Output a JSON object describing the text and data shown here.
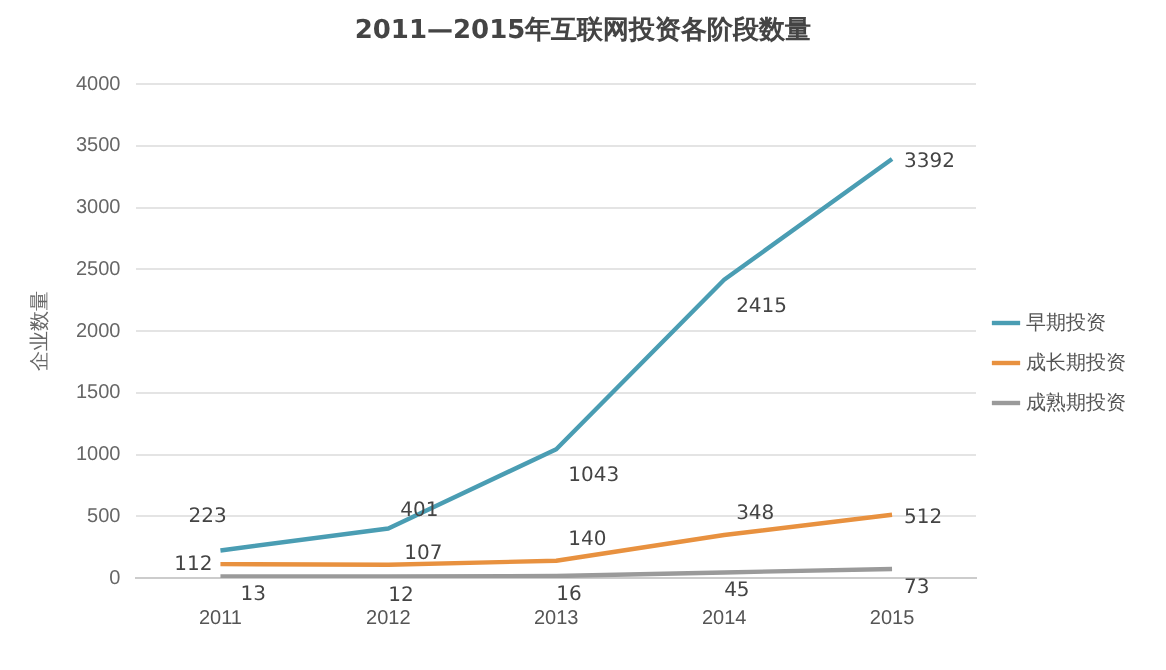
{
  "chart_data": {
    "type": "line",
    "title": "2011—2015年互联网投资各阶段数量",
    "ylabel": "企业数量",
    "categories": [
      "2011",
      "2012",
      "2013",
      "2014",
      "2015"
    ],
    "series": [
      {
        "name": "早期投资",
        "color": "#4a9db3",
        "values": [
          223,
          401,
          1043,
          2415,
          3392
        ]
      },
      {
        "name": "成长期投资",
        "color": "#e8913f",
        "values": [
          112,
          107,
          140,
          348,
          512
        ]
      },
      {
        "name": "成熟期投资",
        "color": "#9a9a9a",
        "values": [
          13,
          12,
          16,
          45,
          73
        ]
      }
    ],
    "ylim": [
      0,
      4000
    ],
    "yticks": [
      0,
      500,
      1000,
      1500,
      2000,
      2500,
      3000,
      3500,
      4000
    ],
    "grid": "y",
    "legend": "right",
    "marker": "none",
    "line_style": "solid",
    "data_labels": true
  }
}
